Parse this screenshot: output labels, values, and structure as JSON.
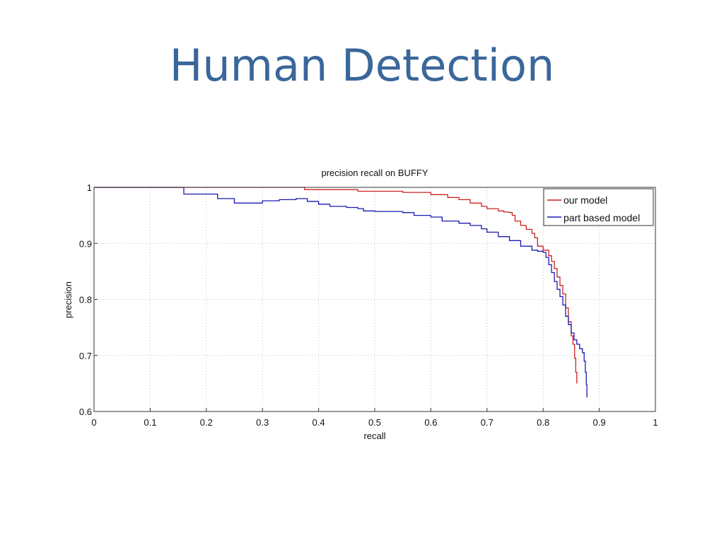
{
  "slide": {
    "title": "Human Detection"
  },
  "colors": {
    "title": "#3a679a",
    "series_our_model": "#cc2222",
    "series_part_based": "#1a1ab0",
    "grid": "#bdbdbd",
    "axes": "#333333"
  },
  "chart_data": {
    "type": "line",
    "title": "precision recall on BUFFY",
    "xlabel": "recall",
    "ylabel": "precision",
    "xlim": [
      0,
      1
    ],
    "ylim": [
      0.6,
      1
    ],
    "xticks": [
      "0",
      "0.1",
      "0.2",
      "0.3",
      "0.4",
      "0.5",
      "0.6",
      "0.7",
      "0.8",
      "0.9",
      "1"
    ],
    "yticks": [
      "0.6",
      "0.7",
      "0.8",
      "0.9",
      "1"
    ],
    "grid": true,
    "legend_position": "top-right",
    "series": [
      {
        "name": "our model",
        "color": "#cc2222",
        "points": [
          [
            0,
            1.0
          ],
          [
            0.375,
            1.0
          ],
          [
            0.375,
            0.996
          ],
          [
            0.47,
            0.996
          ],
          [
            0.47,
            0.993
          ],
          [
            0.55,
            0.993
          ],
          [
            0.55,
            0.991
          ],
          [
            0.6,
            0.991
          ],
          [
            0.6,
            0.987
          ],
          [
            0.62,
            0.987
          ],
          [
            0.63,
            0.982
          ],
          [
            0.65,
            0.978
          ],
          [
            0.67,
            0.972
          ],
          [
            0.69,
            0.966
          ],
          [
            0.7,
            0.962
          ],
          [
            0.72,
            0.958
          ],
          [
            0.73,
            0.956
          ],
          [
            0.74,
            0.955
          ],
          [
            0.745,
            0.95
          ],
          [
            0.75,
            0.94
          ],
          [
            0.76,
            0.932
          ],
          [
            0.77,
            0.925
          ],
          [
            0.78,
            0.918
          ],
          [
            0.785,
            0.91
          ],
          [
            0.79,
            0.895
          ],
          [
            0.8,
            0.888
          ],
          [
            0.81,
            0.878
          ],
          [
            0.815,
            0.868
          ],
          [
            0.82,
            0.855
          ],
          [
            0.825,
            0.84
          ],
          [
            0.83,
            0.825
          ],
          [
            0.835,
            0.81
          ],
          [
            0.84,
            0.785
          ],
          [
            0.845,
            0.76
          ],
          [
            0.85,
            0.735
          ],
          [
            0.853,
            0.72
          ],
          [
            0.856,
            0.695
          ],
          [
            0.858,
            0.67
          ],
          [
            0.86,
            0.65
          ]
        ]
      },
      {
        "name": "part based model",
        "color": "#1a1ab0",
        "points": [
          [
            0,
            1.0
          ],
          [
            0.16,
            1.0
          ],
          [
            0.16,
            0.988
          ],
          [
            0.22,
            0.988
          ],
          [
            0.22,
            0.98
          ],
          [
            0.25,
            0.98
          ],
          [
            0.25,
            0.972
          ],
          [
            0.3,
            0.976
          ],
          [
            0.33,
            0.978
          ],
          [
            0.36,
            0.98
          ],
          [
            0.38,
            0.975
          ],
          [
            0.4,
            0.97
          ],
          [
            0.42,
            0.966
          ],
          [
            0.45,
            0.964
          ],
          [
            0.47,
            0.962
          ],
          [
            0.48,
            0.958
          ],
          [
            0.5,
            0.957
          ],
          [
            0.52,
            0.957
          ],
          [
            0.55,
            0.955
          ],
          [
            0.57,
            0.95
          ],
          [
            0.6,
            0.947
          ],
          [
            0.62,
            0.94
          ],
          [
            0.65,
            0.936
          ],
          [
            0.67,
            0.932
          ],
          [
            0.69,
            0.926
          ],
          [
            0.7,
            0.92
          ],
          [
            0.72,
            0.912
          ],
          [
            0.74,
            0.905
          ],
          [
            0.76,
            0.895
          ],
          [
            0.78,
            0.888
          ],
          [
            0.79,
            0.886
          ],
          [
            0.8,
            0.884
          ],
          [
            0.805,
            0.875
          ],
          [
            0.81,
            0.862
          ],
          [
            0.815,
            0.848
          ],
          [
            0.82,
            0.832
          ],
          [
            0.825,
            0.818
          ],
          [
            0.83,
            0.805
          ],
          [
            0.835,
            0.79
          ],
          [
            0.84,
            0.77
          ],
          [
            0.845,
            0.755
          ],
          [
            0.85,
            0.74
          ],
          [
            0.855,
            0.728
          ],
          [
            0.86,
            0.72
          ],
          [
            0.865,
            0.712
          ],
          [
            0.87,
            0.705
          ],
          [
            0.873,
            0.69
          ],
          [
            0.875,
            0.67
          ],
          [
            0.877,
            0.648
          ],
          [
            0.878,
            0.625
          ]
        ]
      }
    ]
  }
}
